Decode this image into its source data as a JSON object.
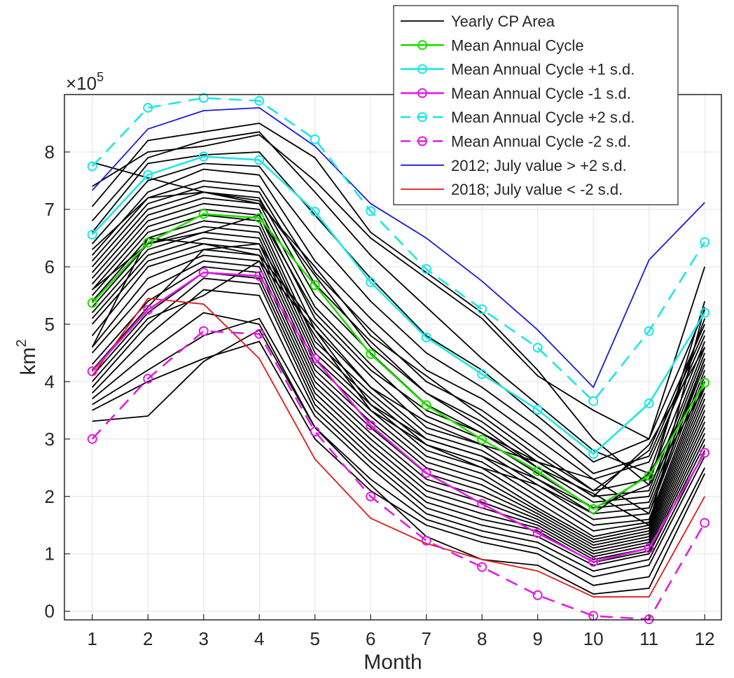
{
  "chart_data": {
    "type": "line",
    "xlabel": "Month",
    "ylabel_base": "km",
    "ylabel_exp": "2",
    "multiplier_base": "×10",
    "multiplier_exp": "5",
    "x_ticks": [
      "1",
      "2",
      "3",
      "4",
      "5",
      "6",
      "7",
      "8",
      "9",
      "10",
      "11",
      "12"
    ],
    "y_ticks": [
      "0",
      "1",
      "2",
      "3",
      "4",
      "5",
      "6",
      "7",
      "8"
    ],
    "xlim": [
      0.5,
      12.3
    ],
    "ylim": [
      -0.15,
      9.0
    ],
    "y_scale_factor": 100000,
    "grid": true,
    "legend_position": "top-right",
    "legend": [
      {
        "label": "Yearly CP Area",
        "color": "#000000",
        "dash": false,
        "marker": false,
        "width": 1.8
      },
      {
        "label": "Mean Annual Cycle",
        "color": "#22dd00",
        "dash": false,
        "marker": true,
        "width": 2.6
      },
      {
        "label": "Mean Annual Cycle +1 s.d.",
        "color": "#1ee6e6",
        "dash": false,
        "marker": true,
        "width": 2.6
      },
      {
        "label": "Mean Annual Cycle -1 s.d.",
        "color": "#e01ee0",
        "dash": false,
        "marker": true,
        "width": 2.6
      },
      {
        "label": "Mean Annual Cycle +2 s.d.",
        "color": "#1ee6e6",
        "dash": true,
        "marker": true,
        "width": 2.6
      },
      {
        "label": "Mean Annual Cycle -2 s.d.",
        "color": "#e01ee0",
        "dash": true,
        "marker": true,
        "width": 2.6
      },
      {
        "label": "2012; July value > +2 s.d.",
        "color": "#1a1adc",
        "dash": false,
        "marker": false,
        "width": 1.8
      },
      {
        "label": "2018; July value < -2 s.d.",
        "color": "#e01a1a",
        "dash": false,
        "marker": false,
        "width": 1.8
      }
    ],
    "yearly_series": [
      [
        7.82,
        7.55,
        7.3,
        7.15,
        5.85,
        4.6,
        3.8,
        3.2,
        2.5,
        2.05,
        1.5,
        5.3
      ],
      [
        7.4,
        8.0,
        8.1,
        8.3,
        7.5,
        6.5,
        5.8,
        5.1,
        4.1,
        3.5,
        3.0,
        6.0
      ],
      [
        7.05,
        8.2,
        8.35,
        8.5,
        7.9,
        6.6,
        5.9,
        5.2,
        4.2,
        3.0,
        2.2,
        5.4
      ],
      [
        6.8,
        7.9,
        8.2,
        8.35,
        7.3,
        6.2,
        5.3,
        4.4,
        3.6,
        2.8,
        2.4,
        5.1
      ],
      [
        6.6,
        7.8,
        7.95,
        8.0,
        6.9,
        5.8,
        4.8,
        4.2,
        3.4,
        2.6,
        3.0,
        5.25
      ],
      [
        6.4,
        7.5,
        7.8,
        7.75,
        6.5,
        5.4,
        4.5,
        3.9,
        3.2,
        2.4,
        2.7,
        4.9
      ],
      [
        6.2,
        7.3,
        7.7,
        7.6,
        6.1,
        5.1,
        4.2,
        3.7,
        3.0,
        2.3,
        2.6,
        4.8
      ],
      [
        6.1,
        7.2,
        7.5,
        7.4,
        5.9,
        4.9,
        4.0,
        3.5,
        2.8,
        2.1,
        2.3,
        4.7
      ],
      [
        6.0,
        7.1,
        7.4,
        7.3,
        5.7,
        4.7,
        3.8,
        3.3,
        2.6,
        2.0,
        2.1,
        4.6
      ],
      [
        5.9,
        7.0,
        7.3,
        7.2,
        5.5,
        4.5,
        3.6,
        3.1,
        2.5,
        1.9,
        2.0,
        4.5
      ],
      [
        5.8,
        6.9,
        7.2,
        7.1,
        5.3,
        4.3,
        3.4,
        3.0,
        2.4,
        1.8,
        1.9,
        4.4
      ],
      [
        5.7,
        6.8,
        7.1,
        7.0,
        5.1,
        4.1,
        3.2,
        2.9,
        2.3,
        1.7,
        1.8,
        4.3
      ],
      [
        5.6,
        6.7,
        7.0,
        6.9,
        4.9,
        3.9,
        3.1,
        2.8,
        2.2,
        1.6,
        1.7,
        4.2
      ],
      [
        5.5,
        6.6,
        6.9,
        6.8,
        4.7,
        3.8,
        3.0,
        2.7,
        2.1,
        1.5,
        1.6,
        4.1
      ],
      [
        5.4,
        6.5,
        6.8,
        6.7,
        4.6,
        3.7,
        2.9,
        2.6,
        2.0,
        1.4,
        1.55,
        4.0
      ],
      [
        5.3,
        6.4,
        6.7,
        6.6,
        4.5,
        3.6,
        2.8,
        2.5,
        1.9,
        1.3,
        1.5,
        3.9
      ],
      [
        5.2,
        6.3,
        6.6,
        6.5,
        4.4,
        3.5,
        2.7,
        2.4,
        1.8,
        1.25,
        1.45,
        3.8
      ],
      [
        5.1,
        6.2,
        6.5,
        6.4,
        4.3,
        3.4,
        2.6,
        2.3,
        1.75,
        1.2,
        1.4,
        3.7
      ],
      [
        5.0,
        6.1,
        6.4,
        6.3,
        4.2,
        3.3,
        2.5,
        2.2,
        1.7,
        1.15,
        1.35,
        3.6
      ],
      [
        4.8,
        6.0,
        6.3,
        6.2,
        4.1,
        3.2,
        2.4,
        2.1,
        1.65,
        1.1,
        1.3,
        3.5
      ],
      [
        4.6,
        5.8,
        6.2,
        6.1,
        4.0,
        3.1,
        2.3,
        2.0,
        1.6,
        1.05,
        1.25,
        3.4
      ],
      [
        4.5,
        5.6,
        6.1,
        6.0,
        3.9,
        3.0,
        2.2,
        1.9,
        1.55,
        1.0,
        1.2,
        3.3
      ],
      [
        4.3,
        5.4,
        6.0,
        5.9,
        3.8,
        2.9,
        2.1,
        1.8,
        1.5,
        0.95,
        1.15,
        3.2
      ],
      [
        4.1,
        5.2,
        5.9,
        5.8,
        3.7,
        2.8,
        2.0,
        1.7,
        1.45,
        0.9,
        1.1,
        3.1
      ],
      [
        3.9,
        5.0,
        5.8,
        5.7,
        3.6,
        2.7,
        1.9,
        1.6,
        1.4,
        0.85,
        1.05,
        3.0
      ],
      [
        3.8,
        4.8,
        5.6,
        5.5,
        3.5,
        2.6,
        1.8,
        1.5,
        1.3,
        0.8,
        1.0,
        2.9
      ],
      [
        3.7,
        4.5,
        5.2,
        5.0,
        3.2,
        2.3,
        1.6,
        1.3,
        1.1,
        0.6,
        0.8,
        2.7
      ],
      [
        3.6,
        4.2,
        4.8,
        5.1,
        3.4,
        2.5,
        1.7,
        1.4,
        1.2,
        0.7,
        0.9,
        2.8
      ],
      [
        3.5,
        4.0,
        4.4,
        4.7,
        3.0,
        2.1,
        1.5,
        1.2,
        1.0,
        0.45,
        0.6,
        2.5
      ],
      [
        3.31,
        3.4,
        4.35,
        4.9,
        3.2,
        2.2,
        1.3,
        0.9,
        0.8,
        0.3,
        0.4,
        2.4
      ],
      [
        4.6,
        6.5,
        6.4,
        6.2,
        5.0,
        3.9,
        3.3,
        2.9,
        2.6,
        2.3,
        1.7,
        4.4
      ],
      [
        6.3,
        7.2,
        7.3,
        7.1,
        6.0,
        4.8,
        4.1,
        3.4,
        2.7,
        2.1,
        2.8,
        5.0
      ],
      [
        5.6,
        6.4,
        6.6,
        6.9,
        5.2,
        4.2,
        3.5,
        3.1,
        2.6,
        2.0,
        2.9,
        4.6
      ],
      [
        4.2,
        5.3,
        6.3,
        6.4,
        4.8,
        3.5,
        2.9,
        2.5,
        2.2,
        1.7,
        2.4,
        4.0
      ],
      [
        4.0,
        5.1,
        5.5,
        6.1,
        4.9,
        3.6,
        3.0,
        2.7,
        2.3,
        1.8,
        2.2,
        3.9
      ]
    ],
    "mean": [
      5.37,
      6.42,
      6.92,
      6.85,
      5.68,
      4.48,
      3.59,
      2.99,
      2.44,
      1.78,
      2.36,
      3.98
    ],
    "mean_plus_1sd": [
      6.56,
      7.6,
      7.92,
      7.86,
      6.96,
      5.73,
      4.77,
      4.13,
      3.51,
      2.74,
      3.62,
      5.2
    ],
    "mean_minus_1sd": [
      4.18,
      5.25,
      5.9,
      5.84,
      4.4,
      3.24,
      2.41,
      1.87,
      1.36,
      0.86,
      1.1,
      2.76
    ],
    "mean_plus_2sd": [
      7.75,
      8.77,
      8.94,
      8.89,
      8.22,
      6.97,
      5.96,
      5.26,
      4.59,
      3.66,
      4.88,
      6.43
    ],
    "mean_minus_2sd": [
      3.0,
      4.05,
      4.88,
      4.83,
      3.13,
      2.0,
      1.23,
      0.77,
      0.28,
      -0.08,
      -0.14,
      1.54
    ],
    "series_2012": [
      7.33,
      8.4,
      8.72,
      8.77,
      8.1,
      7.1,
      6.5,
      5.75,
      4.9,
      3.9,
      6.12,
      7.12
    ],
    "series_2018": [
      4.1,
      5.45,
      5.35,
      4.4,
      2.65,
      1.62,
      1.18,
      0.9,
      0.7,
      0.25,
      0.25,
      2.0
    ]
  }
}
